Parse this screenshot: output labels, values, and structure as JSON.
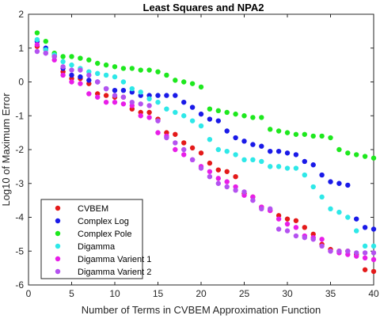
{
  "chart_data": {
    "type": "scatter",
    "title": "Least Squares and NPA2",
    "xlabel": "Number of Terms in CVBEM Approximation Function",
    "ylabel": "Log10 of Maximum Error",
    "xlim": [
      0,
      40
    ],
    "ylim": [
      -6,
      2
    ],
    "xticks": [
      "0",
      "5",
      "10",
      "15",
      "20",
      "25",
      "30",
      "35",
      "40"
    ],
    "yticks": [
      "2",
      "1",
      "0",
      "-1",
      "-2",
      "-3",
      "-4",
      "-5",
      "-6"
    ],
    "grid": false,
    "legend_position": "bottom-left",
    "series": [
      {
        "name": "CVBEM",
        "color": "#e41a1a",
        "x": [
          1,
          2,
          3,
          4,
          5,
          6,
          7,
          8,
          9,
          10,
          11,
          12,
          13,
          14,
          15,
          16,
          17,
          18,
          19,
          20,
          21,
          22,
          23,
          24,
          25,
          26,
          27,
          28,
          29,
          30,
          31,
          32,
          33,
          34,
          35,
          36,
          37,
          38,
          39,
          40
        ],
        "y": [
          1.05,
          0.95,
          0.75,
          0.3,
          0.1,
          0.1,
          -0.05,
          -0.35,
          -0.4,
          -0.45,
          -0.45,
          -0.8,
          -0.9,
          -0.9,
          -1.1,
          -1.5,
          -1.55,
          -1.8,
          -1.95,
          -2.1,
          -2.4,
          -2.6,
          -2.65,
          -2.8,
          -3.3,
          -3.4,
          -3.7,
          -3.8,
          -3.95,
          -4.05,
          -4.1,
          -4.3,
          -4.5,
          -4.8,
          -4.95,
          -5.0,
          -5.0,
          -5.1,
          -5.55,
          -5.6
        ]
      },
      {
        "name": "Complex Log",
        "color": "#1a1ae8",
        "x": [
          1,
          2,
          3,
          4,
          5,
          6,
          7,
          8,
          9,
          10,
          11,
          12,
          13,
          14,
          15,
          16,
          17,
          18,
          19,
          20,
          21,
          22,
          23,
          24,
          25,
          26,
          27,
          28,
          29,
          30,
          31,
          32,
          33,
          34,
          35,
          36,
          37,
          38,
          39,
          40
        ],
        "y": [
          1.2,
          1.0,
          0.8,
          0.4,
          0.2,
          0.15,
          0.05,
          0.0,
          -0.2,
          -0.25,
          -0.25,
          -0.3,
          -0.4,
          -0.4,
          -0.4,
          -0.4,
          -0.4,
          -0.6,
          -0.75,
          -0.95,
          -1.1,
          -1.15,
          -1.45,
          -1.65,
          -1.75,
          -1.85,
          -1.9,
          -2.05,
          -2.05,
          -2.1,
          -2.15,
          -2.35,
          -2.45,
          -2.75,
          -2.95,
          -3.0,
          -3.05,
          -4.05,
          -4.3,
          -4.35
        ]
      },
      {
        "name": "Complex Pole",
        "color": "#1ee81e",
        "x": [
          1,
          2,
          3,
          4,
          5,
          6,
          7,
          8,
          9,
          10,
          11,
          12,
          13,
          14,
          15,
          16,
          17,
          18,
          19,
          20,
          21,
          22,
          23,
          24,
          25,
          26,
          27,
          28,
          29,
          30,
          31,
          32,
          33,
          34,
          35,
          36,
          37,
          38,
          39,
          40
        ],
        "y": [
          1.45,
          1.2,
          0.85,
          0.75,
          0.75,
          0.7,
          0.65,
          0.55,
          0.5,
          0.45,
          0.4,
          0.4,
          0.35,
          0.35,
          0.3,
          0.2,
          0.05,
          0.0,
          -0.05,
          -0.15,
          -0.8,
          -0.85,
          -0.9,
          -0.95,
          -1.0,
          -1.05,
          -1.05,
          -1.4,
          -1.45,
          -1.5,
          -1.55,
          -1.55,
          -1.6,
          -1.6,
          -1.65,
          -2.0,
          -2.1,
          -2.15,
          -2.2,
          -2.25
        ]
      },
      {
        "name": "Digamma",
        "color": "#2ee8e8",
        "x": [
          1,
          2,
          3,
          4,
          5,
          6,
          7,
          8,
          9,
          10,
          11,
          12,
          13,
          14,
          15,
          16,
          17,
          18,
          19,
          20,
          21,
          22,
          23,
          24,
          25,
          26,
          27,
          28,
          29,
          30,
          31,
          32,
          33,
          34,
          35,
          36,
          37,
          38,
          39,
          40
        ],
        "y": [
          1.25,
          0.95,
          0.8,
          0.6,
          0.5,
          0.4,
          0.3,
          0.25,
          0.2,
          0.15,
          0.0,
          -0.2,
          -0.3,
          -0.5,
          -0.6,
          -0.8,
          -0.9,
          -1.0,
          -1.15,
          -1.3,
          -1.7,
          -2.0,
          -2.05,
          -2.15,
          -2.3,
          -2.3,
          -2.35,
          -2.5,
          -2.5,
          -2.55,
          -2.55,
          -2.75,
          -3.1,
          -3.4,
          -3.75,
          -3.85,
          -4.0,
          -4.4,
          -4.85,
          -4.85
        ]
      },
      {
        "name": "Digamma Varient 1",
        "color": "#e81ee8",
        "x": [
          1,
          2,
          3,
          4,
          5,
          6,
          7,
          8,
          9,
          10,
          11,
          12,
          13,
          14,
          15,
          16,
          17,
          18,
          19,
          20,
          21,
          22,
          23,
          24,
          25,
          26,
          27,
          28,
          29,
          30,
          31,
          32,
          33,
          34,
          35,
          36,
          37,
          38,
          39,
          40
        ],
        "y": [
          1.1,
          0.85,
          0.65,
          0.2,
          0.0,
          -0.05,
          -0.35,
          -0.45,
          -0.6,
          -0.6,
          -0.65,
          -0.7,
          -1.0,
          -1.05,
          -1.5,
          -1.6,
          -2.0,
          -2.15,
          -2.3,
          -2.5,
          -2.65,
          -2.85,
          -2.95,
          -3.1,
          -3.35,
          -3.4,
          -3.7,
          -3.8,
          -4.05,
          -4.2,
          -4.3,
          -4.55,
          -4.6,
          -4.65,
          -5.0,
          -5.05,
          -5.1,
          -5.15,
          -5.2,
          -5.25
        ]
      },
      {
        "name": "Digamma Varient 2",
        "color": "#b452f0",
        "x": [
          1,
          2,
          3,
          4,
          5,
          6,
          7,
          8,
          9,
          10,
          11,
          12,
          13,
          14,
          15,
          16,
          17,
          18,
          19,
          20,
          21,
          22,
          23,
          24,
          25,
          26,
          27,
          28,
          29,
          30,
          31,
          32,
          33,
          34,
          35,
          36,
          37,
          38,
          39,
          40
        ],
        "y": [
          0.9,
          0.85,
          0.75,
          0.45,
          0.35,
          0.35,
          0.2,
          0.0,
          -0.2,
          -0.4,
          -0.45,
          -0.6,
          -0.65,
          -0.7,
          -1.15,
          -1.65,
          -1.8,
          -2.0,
          -2.3,
          -2.55,
          -2.8,
          -3.0,
          -3.1,
          -3.2,
          -3.25,
          -3.5,
          -3.75,
          -3.75,
          -4.35,
          -4.4,
          -4.55,
          -4.6,
          -4.65,
          -4.85,
          -5.0,
          -5.0,
          -5.0,
          -5.05,
          -5.05,
          -5.05
        ]
      }
    ]
  }
}
